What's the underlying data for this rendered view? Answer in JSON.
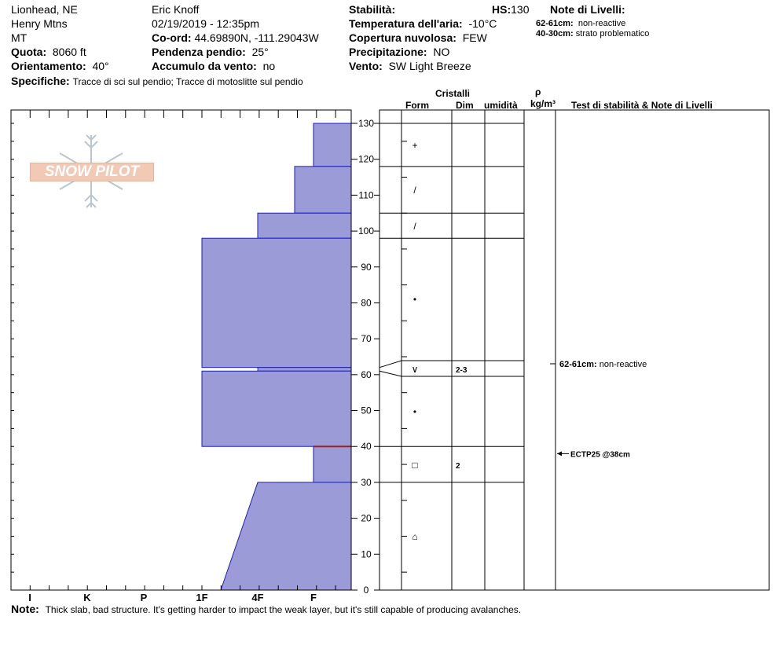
{
  "header": {
    "location": "Lionhead, NE",
    "range": "Henry Mtns",
    "state": "MT",
    "observer": "Eric Knoff",
    "datetime": "02/19/2019 - 12:35pm",
    "coord_label": "Co-ord:",
    "coord_value": "44.69890N, -111.29043W",
    "elevation_label": "Quota:",
    "elevation_value": "8060 ft",
    "slope_label": "Pendenza pendio:",
    "slope_value": "25°",
    "aspect_label": "Orientamento:",
    "aspect_value": "40°",
    "wind_loading_label": "Accumulo da vento:",
    "wind_loading_value": "no",
    "specifics_label": "Specifiche:",
    "specifics_value": "Tracce di sci sul pendio;  Tracce di motoslitte sul pendio",
    "stability_label": "Stabilità:",
    "hs_label": "HS:",
    "hs_value": "130",
    "air_temp_label": "Temperatura dell'aria:",
    "air_temp_value": "-10°C",
    "sky_label": "Copertura nuvolosa:",
    "sky_value": "FEW",
    "precip_label": "Precipitazione:",
    "precip_value": "NO",
    "wind_label": "Vento:",
    "wind_value": "SW  Light Breeze"
  },
  "layer_notes": {
    "title": "Note di Livelli:",
    "items": [
      {
        "range": "62-61cm:",
        "text": "non-reactive"
      },
      {
        "range": "40-30cm:",
        "text": "strato problematico"
      }
    ]
  },
  "logo": {
    "text": "SNOW PILOT"
  },
  "table_headers": {
    "crystals": "Cristalli",
    "form": "Form",
    "size": "Dim",
    "moisture": "umidità",
    "rho": "ρ",
    "density_unit": "kg/m³",
    "stability_notes": "Test di stabilità & Note di Livelli"
  },
  "footer": {
    "note_label": "Note:",
    "note_text": "Thick slab, bad structure. It's getting harder to impact the weak layer, but it's still capable of producing avalanches."
  },
  "chart_data": {
    "type": "area",
    "hardness_scale": [
      "I",
      "K",
      "P",
      "1F",
      "4F",
      "F"
    ],
    "y_axis": {
      "min": 0,
      "max": 130,
      "ticks": [
        0,
        10,
        20,
        30,
        40,
        50,
        60,
        70,
        80,
        90,
        100,
        110,
        120,
        130
      ]
    },
    "layers": [
      {
        "top": 130,
        "bottom": 118,
        "hardness": 1,
        "form": "+",
        "size": ""
      },
      {
        "top": 118,
        "bottom": 105,
        "hardness": 1.5,
        "form": "/",
        "size": ""
      },
      {
        "top": 105,
        "bottom": 98,
        "hardness": 2.5,
        "form": "/",
        "size": ""
      },
      {
        "top": 98,
        "bottom": 62,
        "hardness": 4,
        "form": "•",
        "size": ""
      },
      {
        "top": 62,
        "bottom": 61,
        "hardness": 2.5,
        "form": "∨",
        "size": "2-3"
      },
      {
        "top": 61,
        "bottom": 40,
        "hardness": 4,
        "form": "•",
        "size": ""
      },
      {
        "top": 40,
        "bottom": 30,
        "hardness": 1,
        "form": "□",
        "size": "2"
      },
      {
        "top": 30,
        "bottom": 0,
        "hardness_top": 2.5,
        "hardness_bottom": 3.5,
        "form": "⌂",
        "size": ""
      }
    ],
    "test_results": [
      {
        "depth": 61.5,
        "text": "62-61cm:",
        "detail": "non-reactive"
      },
      {
        "depth": 38,
        "text": "ECTP25 @38cm",
        "detail": ""
      }
    ]
  }
}
